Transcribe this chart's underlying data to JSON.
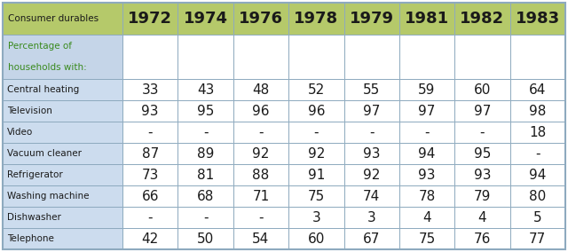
{
  "header_col": "Consumer durables",
  "years": [
    "1972",
    "1974",
    "1976",
    "1978",
    "1979",
    "1981",
    "1982",
    "1983"
  ],
  "subtitle_label": "Percentage of\n\nhouseholds with:",
  "rows": [
    [
      "Central heating",
      "33",
      "43",
      "48",
      "52",
      "55",
      "59",
      "60",
      "64"
    ],
    [
      "Television",
      "93",
      "95",
      "96",
      "96",
      "97",
      "97",
      "97",
      "98"
    ],
    [
      "Video",
      "-",
      "-",
      "-",
      "-",
      "-",
      "-",
      "-",
      "18"
    ],
    [
      "Vacuum cleaner",
      "87",
      "89",
      "92",
      "92",
      "93",
      "94",
      "95",
      "-"
    ],
    [
      "Refrigerator",
      "73",
      "81",
      "88",
      "91",
      "92",
      "93",
      "93",
      "94"
    ],
    [
      "Washing machine",
      "66",
      "68",
      "71",
      "75",
      "74",
      "78",
      "79",
      "80"
    ],
    [
      "Dishwasher",
      "-",
      "-",
      "-",
      "3",
      "3",
      "4",
      "4",
      "5"
    ],
    [
      "Telephone",
      "42",
      "50",
      "54",
      "60",
      "67",
      "75",
      "76",
      "77"
    ]
  ],
  "header_bg": "#b5c96a",
  "header_text_color": "#1a1a1a",
  "year_text_color": "#1a1a1a",
  "subtitle_bg": "#c5d5e8",
  "subtitle_text_color": "#3a8a1e",
  "row_bg_light": "#ccdcee",
  "row_bg_white": "#ffffff",
  "data_text_color": "#1a1a1a",
  "row_label_text_color": "#1a1a1a",
  "border_color": "#8eaabf",
  "header_fontsize": 11.5,
  "year_fontsize": 13,
  "data_fontsize": 11,
  "label_fontsize": 7.5,
  "subtitle_fontsize": 7.5
}
